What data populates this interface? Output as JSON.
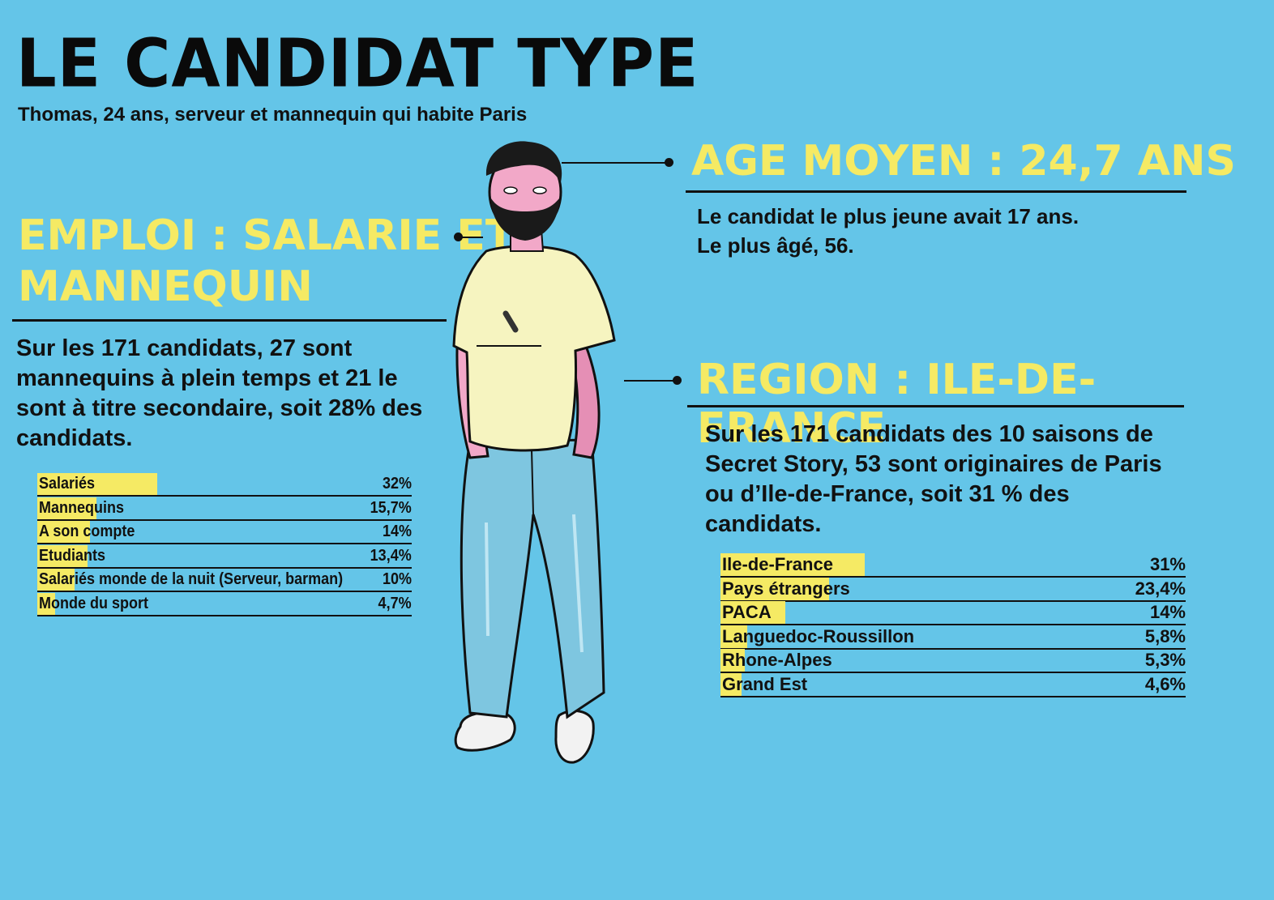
{
  "header": {
    "title": "LE CANDIDAT TYPE",
    "subtitle": "Thomas, 24 ans, serveur et mannequin qui habite Paris"
  },
  "age": {
    "heading": "AGE MOYEN : 24,7 ANS",
    "line1": "Le candidat le plus jeune avait 17 ans.",
    "line2": "Le plus âgé, 56."
  },
  "emploi": {
    "heading_line1": "EMPLOI : SALARIE ET",
    "heading_line2": "MANNEQUIN",
    "text": "Sur les 171 candidats, 27 sont mannequins à plein temps et 21 le sont à titre secondaire, soit 28% des candidats."
  },
  "region": {
    "heading": "REGION : ILE-DE-FRANCE",
    "text": "Sur les 171 candidats des 10 saisons de Secret Story, 53 sont originaires de Paris ou d’Ile-de-France, soit 31 % des candidats."
  },
  "colors": {
    "background": "#64c5e8",
    "accent_yellow": "#f5ea64",
    "ink": "#111111"
  },
  "chart_data": [
    {
      "type": "bar",
      "orientation": "horizontal",
      "categories": [
        "Salariés",
        "Mannequins",
        "A son compte",
        "Etudiants",
        "Salariés monde de la nuit (Serveur, barman)",
        "Monde du sport"
      ],
      "values": [
        32,
        15.7,
        14,
        13.4,
        10,
        4.7
      ],
      "value_labels": [
        "32%",
        "15,7%",
        "14%",
        "13,4%",
        "10%",
        "4,7%"
      ],
      "xlim": [
        0,
        100
      ]
    },
    {
      "type": "bar",
      "orientation": "horizontal",
      "categories": [
        "Ile-de-France",
        "Pays étrangers",
        "PACA",
        "Languedoc-Roussillon",
        "Rhone-Alpes",
        "Grand Est"
      ],
      "values": [
        31,
        23.4,
        14,
        5.8,
        5.3,
        4.6
      ],
      "value_labels": [
        "31%",
        "23,4%",
        "14%",
        "5,8%",
        "5,3%",
        "4,6%"
      ],
      "xlim": [
        0,
        100
      ]
    }
  ]
}
